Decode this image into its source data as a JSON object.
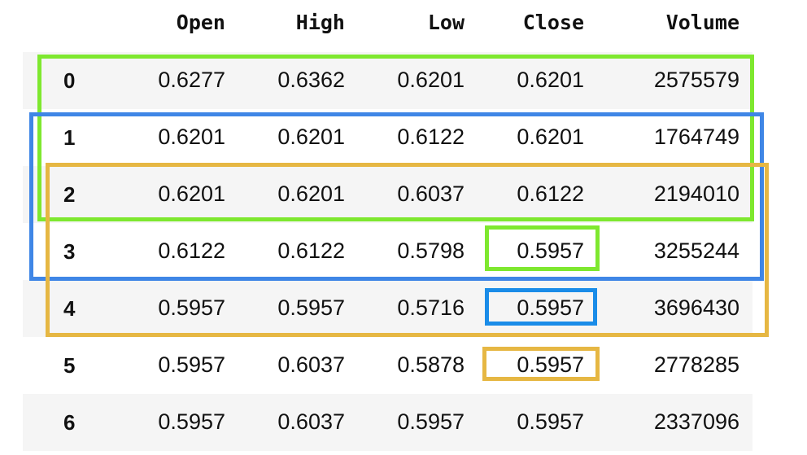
{
  "table": {
    "columns": [
      "Open",
      "High",
      "Low",
      "Close",
      "Volume"
    ],
    "rows": [
      {
        "index": "0",
        "open": "0.6277",
        "high": "0.6362",
        "low": "0.6201",
        "close": "0.6201",
        "volume": "2575579"
      },
      {
        "index": "1",
        "open": "0.6201",
        "high": "0.6201",
        "low": "0.6122",
        "close": "0.6201",
        "volume": "1764749"
      },
      {
        "index": "2",
        "open": "0.6201",
        "high": "0.6201",
        "low": "0.6037",
        "close": "0.6122",
        "volume": "2194010"
      },
      {
        "index": "3",
        "open": "0.6122",
        "high": "0.6122",
        "low": "0.5798",
        "close": "0.5957",
        "volume": "3255244"
      },
      {
        "index": "4",
        "open": "0.5957",
        "high": "0.5957",
        "low": "0.5716",
        "close": "0.5957",
        "volume": "3696430"
      },
      {
        "index": "5",
        "open": "0.5957",
        "high": "0.6037",
        "low": "0.5878",
        "close": "0.5957",
        "volume": "2778285"
      },
      {
        "index": "6",
        "open": "0.5957",
        "high": "0.6037",
        "low": "0.5957",
        "close": "0.5957",
        "volume": "2337096"
      }
    ]
  },
  "highlights": {
    "window_rows": [
      {
        "rows": [
          0,
          2
        ],
        "color": "#7ee82f"
      },
      {
        "rows": [
          1,
          3
        ],
        "color": "#3f86e6"
      },
      {
        "rows": [
          2,
          4
        ],
        "color": "#e6b743"
      }
    ],
    "close_cells": [
      {
        "row": 3,
        "color": "#7ee82f"
      },
      {
        "row": 4,
        "color": "#1a8ce8"
      },
      {
        "row": 5,
        "color": "#e6b743"
      }
    ]
  }
}
